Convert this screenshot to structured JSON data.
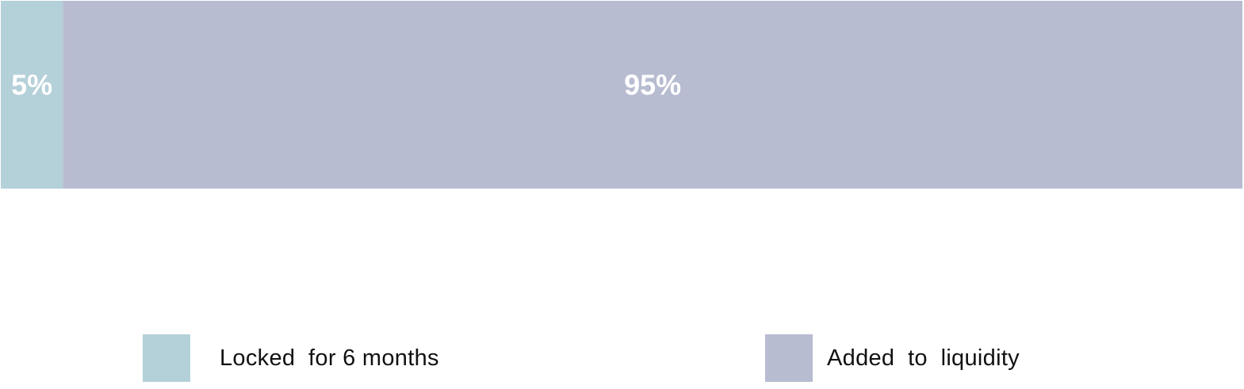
{
  "chart_data": {
    "type": "bar",
    "orientation": "horizontal-stacked",
    "series": [
      {
        "name": "Locked  for 6 months",
        "value": 5,
        "label": "5%",
        "color": "#b4d0d9"
      },
      {
        "name": "Added  to  liquidity",
        "value": 95,
        "label": "95%",
        "color": "#b8bcd1"
      }
    ],
    "total": 100,
    "legend_position": "bottom",
    "grid": false
  }
}
